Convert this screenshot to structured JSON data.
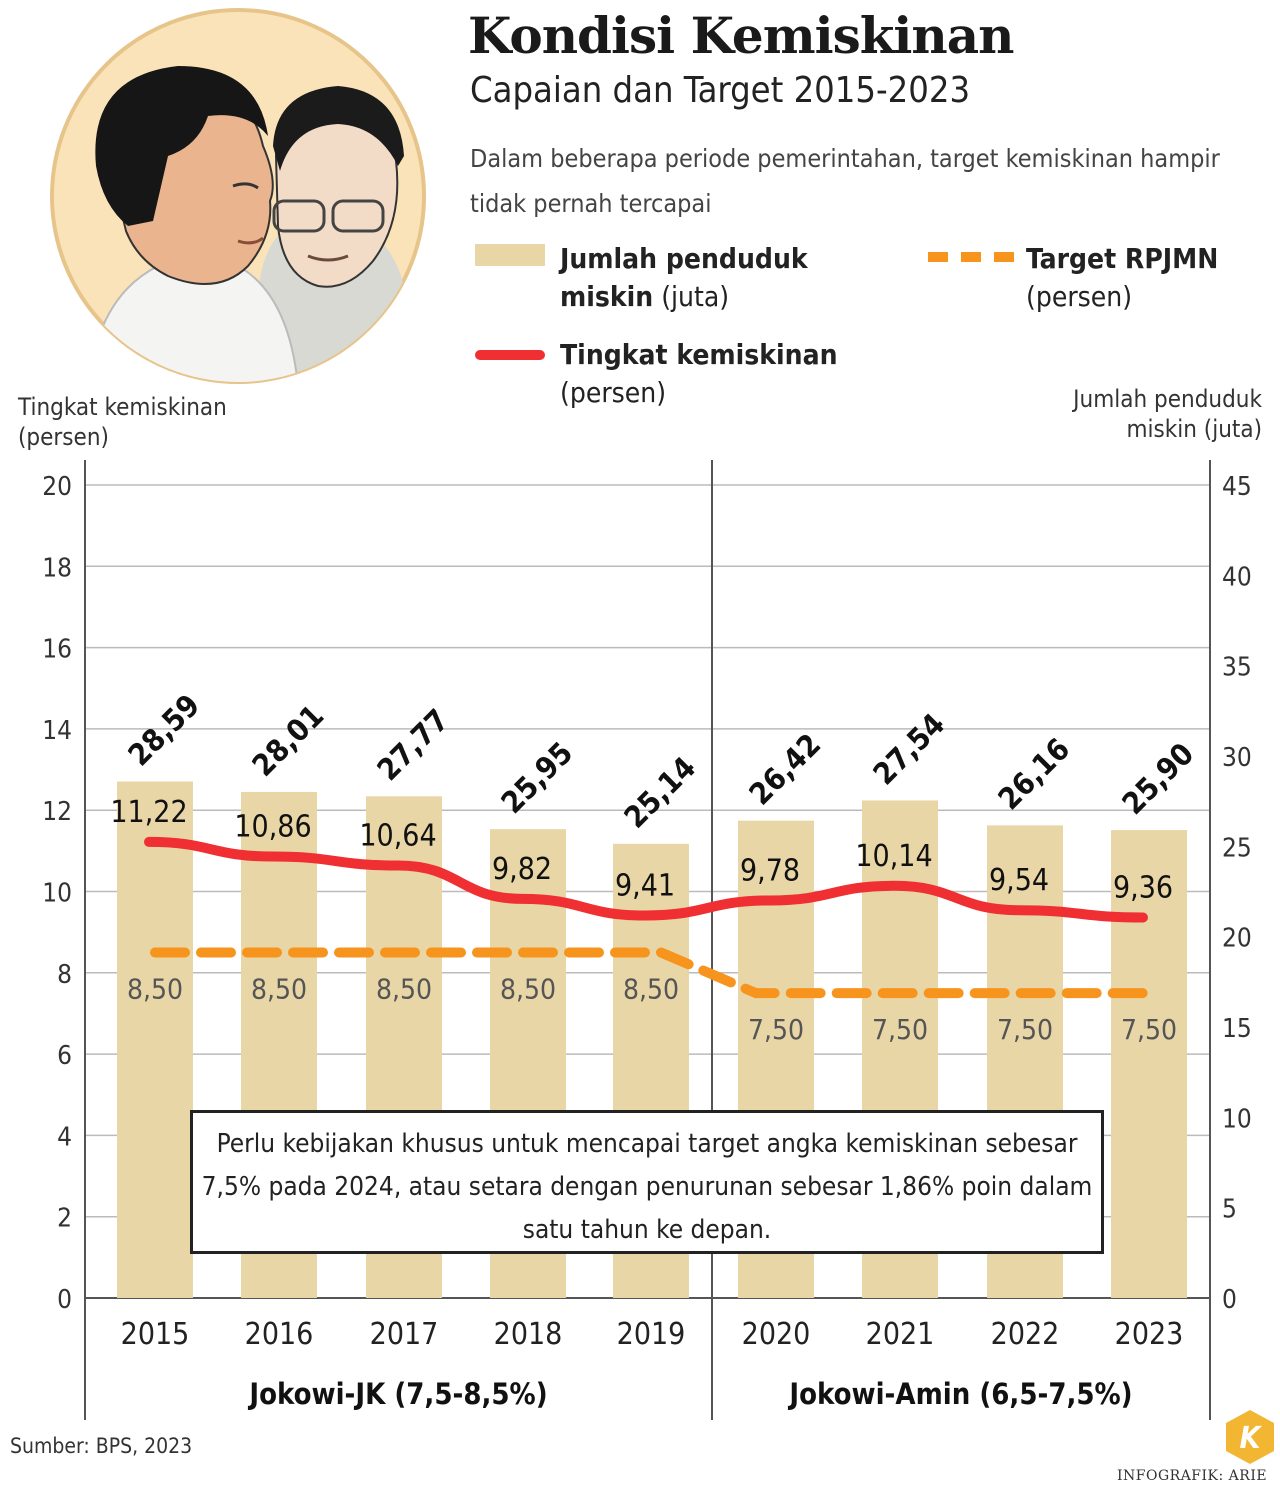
{
  "header": {
    "title": "Kondisi Kemiskinan",
    "subtitle": "Capaian dan Target 2015-2023",
    "description": "Dalam beberapa periode pemerintahan, target kemiskinan hampir tidak pernah tercapai"
  },
  "legend": {
    "bars_bold": "Jumlah penduduk miskin",
    "bars_unit": "(juta)",
    "line_bold": "Tingkat kemiskinan",
    "line_unit": "(persen)",
    "target_bold": "Target RPJMN",
    "target_unit": "(persen)"
  },
  "axes": {
    "left_title_1": "Tingkat kemiskinan",
    "left_title_2": "(persen)",
    "right_title_1": "Jumlah penduduk",
    "right_title_2": "miskin (juta)"
  },
  "note": "Perlu kebijakan khusus untuk mencapai target angka kemiskinan sebesar 7,5% pada 2024, atau setara dengan penurunan sebesar 1,86% poin dalam satu tahun ke depan.",
  "periods": [
    {
      "label": "Jokowi-JK (7,5-8,5%)",
      "years": [
        "2015",
        "2016",
        "2017",
        "2018",
        "2019"
      ]
    },
    {
      "label": "Jokowi-Amin (6,5-7,5%)",
      "years": [
        "2020",
        "2021",
        "2022",
        "2023"
      ]
    }
  ],
  "source": "Sumber: BPS, 2023",
  "credit": "INFOGRAFIK: ARIE",
  "logo_letter": "K",
  "colors": {
    "bar": "#e8d6a7",
    "line": "#ef2f31",
    "target": "#f7941d",
    "portrait_bg": "#fbe3b9"
  },
  "chart_data": {
    "type": "bar",
    "categories": [
      "2015",
      "2016",
      "2017",
      "2018",
      "2019",
      "2020",
      "2021",
      "2022",
      "2023"
    ],
    "left_axis": {
      "min": 0,
      "max": 20,
      "ticks": [
        "0",
        "2",
        "4",
        "6",
        "8",
        "10",
        "12",
        "14",
        "16",
        "18",
        "20"
      ]
    },
    "right_axis": {
      "min": 0,
      "max": 45,
      "ticks": [
        "0",
        "5",
        "10",
        "15",
        "20",
        "25",
        "30",
        "35",
        "40",
        "45"
      ]
    },
    "series": [
      {
        "name": "Jumlah penduduk miskin (juta)",
        "kind": "bar",
        "axis": "right",
        "values": [
          28.59,
          28.01,
          27.77,
          25.95,
          25.14,
          26.42,
          27.54,
          26.16,
          25.9
        ],
        "labels": [
          "28,59",
          "28,01",
          "27,77",
          "25,95",
          "25,14",
          "26,42",
          "27,54",
          "26,16",
          "25,90"
        ]
      },
      {
        "name": "Tingkat kemiskinan (persen)",
        "kind": "line",
        "axis": "left",
        "values": [
          11.22,
          10.86,
          10.64,
          9.82,
          9.41,
          9.78,
          10.14,
          9.54,
          9.36
        ],
        "labels": [
          "11,22",
          "10,86",
          "10,64",
          "9,82",
          "9,41",
          "9,78",
          "10,14",
          "9,54",
          "9,36"
        ]
      },
      {
        "name": "Target RPJMN (persen)",
        "kind": "dashed-line",
        "axis": "left",
        "values": [
          8.5,
          8.5,
          8.5,
          8.5,
          8.5,
          7.5,
          7.5,
          7.5,
          7.5
        ],
        "labels": [
          "8,50",
          "8,50",
          "8,50",
          "8,50",
          "8,50",
          "7,50",
          "7,50",
          "7,50",
          "7,50"
        ]
      }
    ],
    "grid": true
  }
}
